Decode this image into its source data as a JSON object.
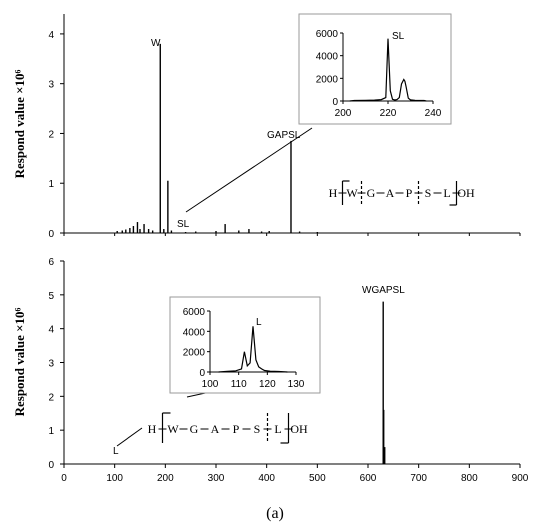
{
  "caption": "(a)",
  "chart_data": [
    {
      "type": "line",
      "ylabel": "Respond value ×10⁶",
      "xlim": [
        0,
        900
      ],
      "ylim": [
        0,
        4.4
      ],
      "yticks": [
        "0",
        "1",
        "2",
        "3",
        "4"
      ],
      "xtick_labels": [],
      "annotations": {
        "W": "W",
        "SL": "SL",
        "GAPSL": "GAPSL"
      },
      "peaks": [
        [
          105,
          0.04
        ],
        [
          115,
          0.05
        ],
        [
          122,
          0.07
        ],
        [
          130,
          0.1
        ],
        [
          137,
          0.14
        ],
        [
          145,
          0.22
        ],
        [
          150,
          0.08
        ],
        [
          158,
          0.18
        ],
        [
          167,
          0.08
        ],
        [
          175,
          0.05
        ],
        [
          190,
          3.8
        ],
        [
          197,
          0.08
        ],
        [
          205,
          1.05
        ],
        [
          212,
          0.05
        ],
        [
          240,
          0.02
        ],
        [
          260,
          0.03
        ],
        [
          300,
          0.04
        ],
        [
          318,
          0.18
        ],
        [
          345,
          0.05
        ],
        [
          365,
          0.08
        ],
        [
          390,
          0.03
        ],
        [
          405,
          0.04
        ],
        [
          448,
          1.85
        ],
        [
          465,
          0.03
        ],
        [
          500,
          0.02
        ]
      ],
      "sequence": [
        "H",
        "W",
        "G",
        "A",
        "P",
        "S",
        "L",
        "OH"
      ],
      "inset": {
        "label": "SL",
        "xlim": [
          200,
          240
        ],
        "ylim": [
          0,
          6000
        ],
        "xticks": [
          "200",
          "220",
          "240"
        ],
        "yticks": [
          "0",
          "2000",
          "4000",
          "6000"
        ],
        "peaks": [
          [
            205,
            40
          ],
          [
            210,
            60
          ],
          [
            214,
            80
          ],
          [
            217,
            120
          ],
          [
            219,
            300
          ],
          [
            220,
            5500
          ],
          [
            221,
            900
          ],
          [
            222,
            150
          ],
          [
            223,
            90
          ],
          [
            224,
            120
          ],
          [
            225,
            300
          ],
          [
            226,
            1500
          ],
          [
            227,
            1900
          ],
          [
            227.5,
            1750
          ],
          [
            228,
            1300
          ],
          [
            229,
            250
          ],
          [
            230,
            100
          ],
          [
            232,
            60
          ],
          [
            236,
            40
          ]
        ]
      }
    },
    {
      "type": "line",
      "ylabel": "Respond value ×10⁶",
      "xlim": [
        0,
        900
      ],
      "ylim": [
        0,
        6
      ],
      "yticks": [
        "0",
        "1",
        "2",
        "3",
        "4",
        "5",
        "6"
      ],
      "xtick_labels": [
        "0",
        "100",
        "200",
        "300",
        "400",
        "500",
        "600",
        "700",
        "800",
        "900"
      ],
      "annotations": {
        "L": "L",
        "WGAPSL": "WGAPSL"
      },
      "peaks": [
        [
          630,
          4.8
        ],
        [
          631,
          1.6
        ],
        [
          632,
          0.2
        ],
        [
          633,
          0.5
        ]
      ],
      "sequence": [
        "H",
        "W",
        "G",
        "A",
        "P",
        "S",
        "L",
        "OH"
      ],
      "inset": {
        "label": "L",
        "xlim": [
          100,
          130
        ],
        "ylim": [
          0,
          6000
        ],
        "xticks": [
          "100",
          "110",
          "120",
          "130"
        ],
        "yticks": [
          "0",
          "2000",
          "4000",
          "6000"
        ],
        "peaks": [
          [
            106,
            60
          ],
          [
            109,
            120
          ],
          [
            111,
            300
          ],
          [
            112,
            2000
          ],
          [
            113,
            600
          ],
          [
            114,
            900
          ],
          [
            115,
            4500
          ],
          [
            116,
            1200
          ],
          [
            117,
            500
          ],
          [
            118,
            300
          ],
          [
            119,
            150
          ],
          [
            121,
            80
          ],
          [
            124,
            50
          ]
        ]
      }
    }
  ]
}
